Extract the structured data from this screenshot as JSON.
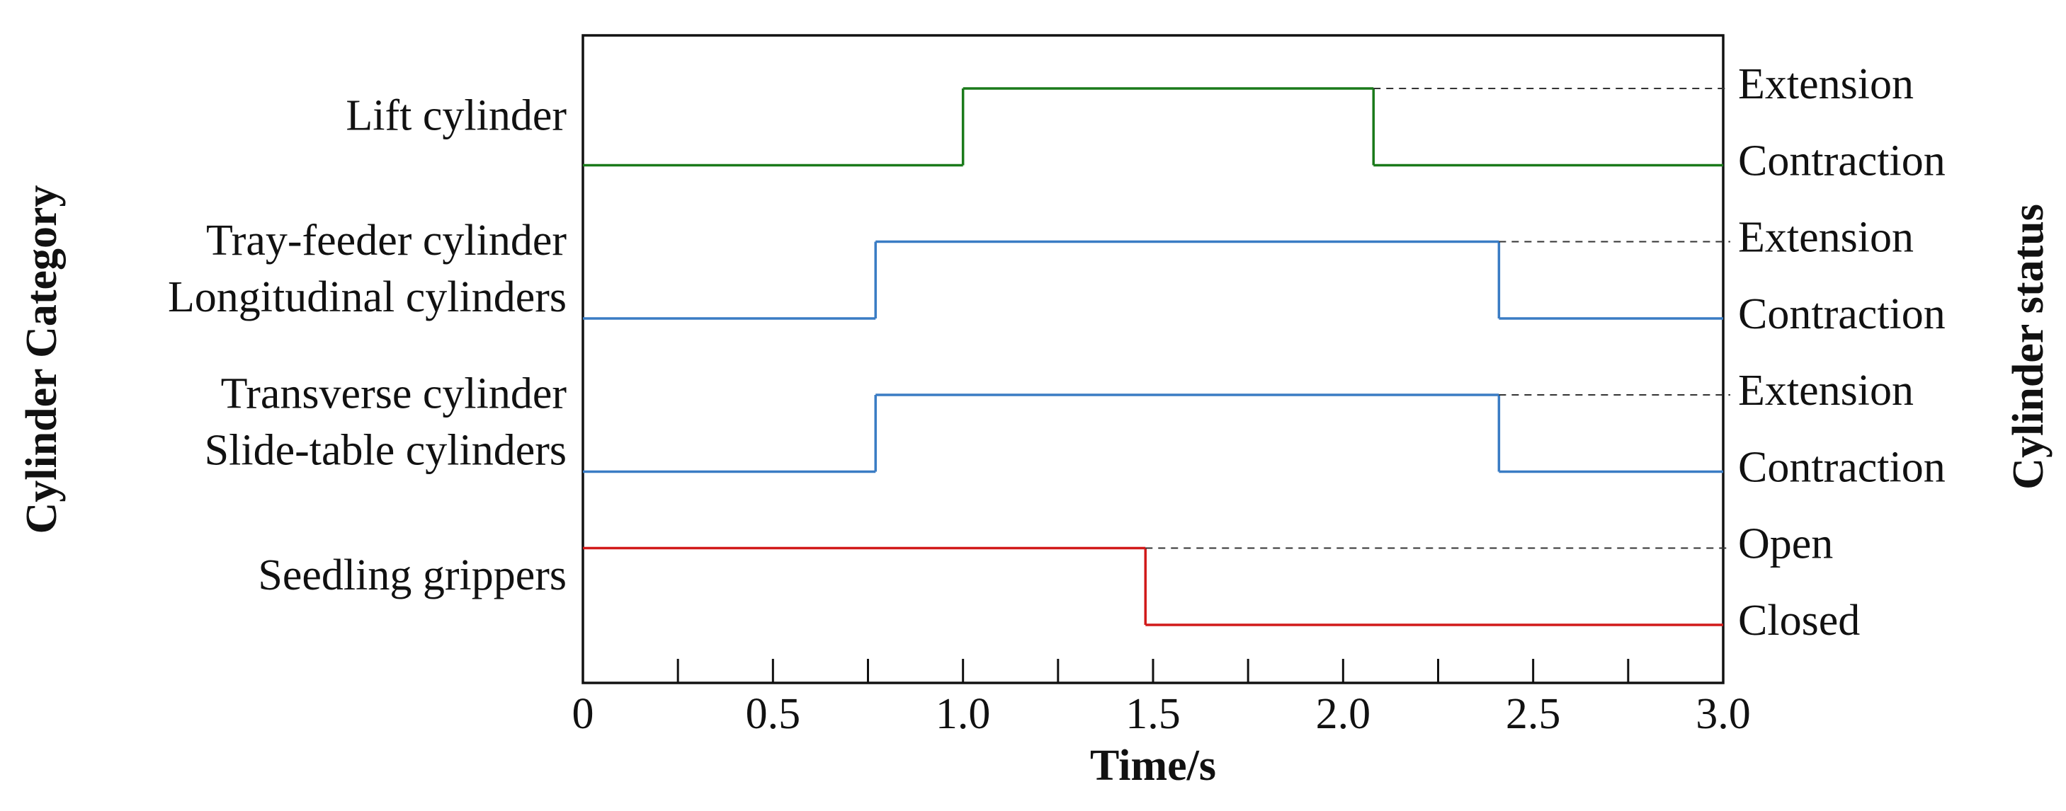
{
  "chart_data": {
    "type": "step",
    "x_label": "Time/s",
    "y_label": "Cylinder Category",
    "y2_label": "Cylinder status",
    "xlim": [
      0,
      3
    ],
    "xticks": [
      0,
      0.5,
      {
        "value": 1,
        "label": "1.0"
      },
      1.5,
      {
        "value": 2,
        "label": "2.0"
      },
      2.5,
      {
        "value": 3,
        "label": "3.0"
      }
    ],
    "xminorticks": [
      0.25,
      0.75,
      1.25,
      1.75,
      2.25,
      2.75
    ],
    "series": [
      {
        "name": [
          "Lift cylinder"
        ],
        "color": "#1a7a1a",
        "states": [
          "Contraction",
          "Extension"
        ],
        "x": [
          0,
          1.0,
          2.08
        ],
        "values": [
          0,
          1,
          0
        ]
      },
      {
        "name": [
          "Tray-feeder cylinder",
          "Longitudinal cylinders"
        ],
        "color": "#3a7cc4",
        "states": [
          "Contraction",
          "Extension"
        ],
        "x": [
          0,
          0.77,
          2.41
        ],
        "values": [
          0,
          1,
          0
        ]
      },
      {
        "name": [
          "Transverse cylinder",
          "Slide-table cylinders"
        ],
        "color": "#3a7cc4",
        "states": [
          "Contraction",
          "Extension"
        ],
        "x": [
          0,
          0.77,
          2.41
        ],
        "values": [
          0,
          1,
          0
        ]
      },
      {
        "name": [
          "Seedling grippers"
        ],
        "color": "#d11a1a",
        "states": [
          "Closed",
          "Open"
        ],
        "x": [
          0,
          1.48
        ],
        "values": [
          1,
          0
        ]
      }
    ]
  }
}
